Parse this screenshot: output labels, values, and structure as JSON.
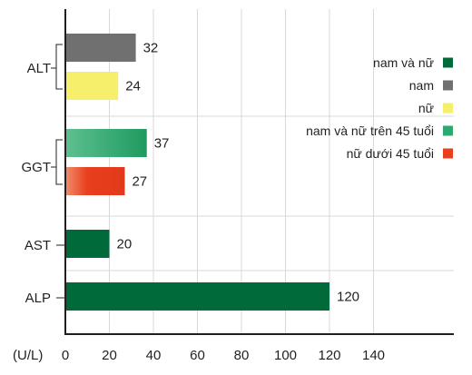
{
  "chart_data": {
    "type": "bar",
    "orientation": "horizontal",
    "unit_label": "(U/L)",
    "xlim": [
      0,
      150
    ],
    "x_ticks": [
      0,
      20,
      40,
      60,
      80,
      100,
      120,
      140
    ],
    "grid": true,
    "legend_position": "right",
    "legend": [
      {
        "label": "nam và nữ",
        "color": "#006a3b"
      },
      {
        "label": "nam",
        "color": "#707070"
      },
      {
        "label": "nữ",
        "color": "#f5ef6b"
      },
      {
        "label": "nam và nữ trên 45 tuổi",
        "color": "#2ea96f"
      },
      {
        "label": "nữ dưới 45 tuổi",
        "color": "#e8401e"
      }
    ],
    "groups": [
      {
        "category": "ALT",
        "bars": [
          {
            "series": "nam",
            "value": 32,
            "color": "#707070"
          },
          {
            "series": "nữ",
            "value": 24,
            "color": "#f5ef6b"
          }
        ]
      },
      {
        "category": "GGT",
        "bars": [
          {
            "series": "nam và nữ trên 45 tuổi",
            "value": 37,
            "color": "#2ea96f"
          },
          {
            "series": "nữ dưới 45 tuổi",
            "value": 27,
            "color": "#e8401e"
          }
        ]
      },
      {
        "category": "AST",
        "bars": [
          {
            "series": "nam và nữ",
            "value": 20,
            "color": "#006a3b"
          }
        ]
      },
      {
        "category": "ALP",
        "bars": [
          {
            "series": "nam và nữ",
            "value": 120,
            "color": "#006a3b"
          }
        ]
      }
    ]
  }
}
